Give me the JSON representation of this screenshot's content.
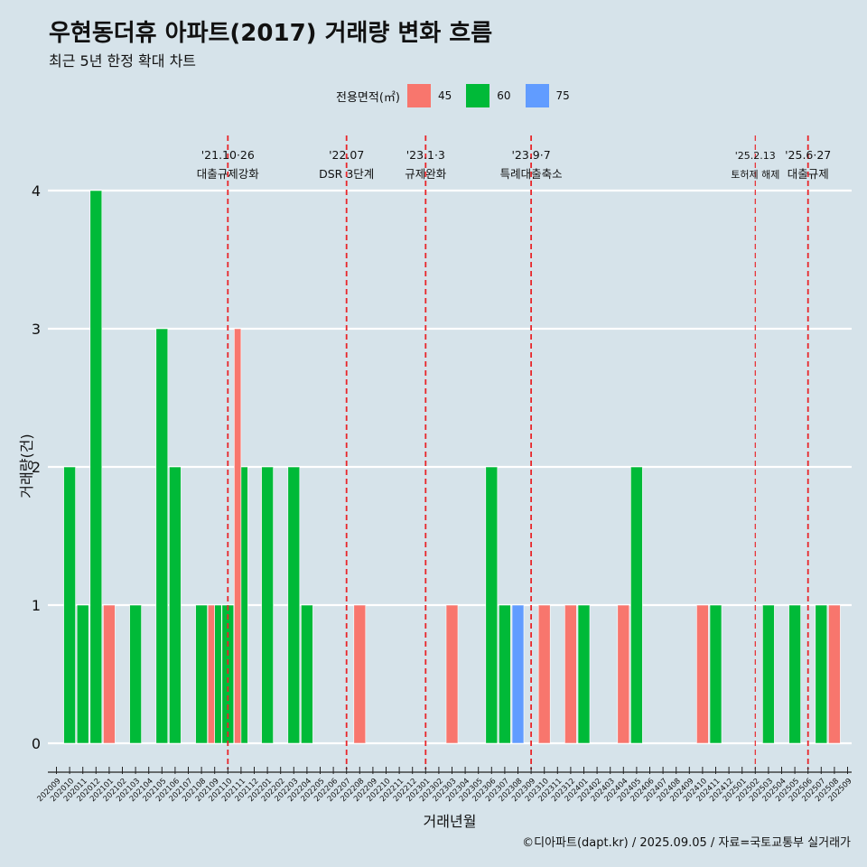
{
  "header": {
    "title": "우현동더휴 아파트(2017) 거래량 변화 흐름",
    "subtitle": "최근 5년 한정 확대 차트"
  },
  "legend": {
    "title": "전용면적(㎡)",
    "items": [
      {
        "label": "45",
        "color": "#f8766d"
      },
      {
        "label": "60",
        "color": "#00ba38"
      },
      {
        "label": "75",
        "color": "#619cff"
      }
    ]
  },
  "caption": "©디아파트(dapt.kr) / 2025.09.05 / 자료=국토교통부 실거래가",
  "chart_data": {
    "type": "bar",
    "xlabel": "거래년월",
    "ylabel": "거래량(건)",
    "ylim": [
      0,
      4
    ],
    "yticks": [
      0,
      1,
      2,
      3,
      4
    ],
    "grid": true,
    "legend_position": "top",
    "categories": [
      "202009",
      "202010",
      "202011",
      "202012",
      "202101",
      "202102",
      "202103",
      "202104",
      "202105",
      "202106",
      "202107",
      "202108",
      "202109",
      "202110",
      "202111",
      "202112",
      "202201",
      "202202",
      "202203",
      "202204",
      "202205",
      "202206",
      "202207",
      "202208",
      "202209",
      "202210",
      "202211",
      "202212",
      "202301",
      "202302",
      "202303",
      "202304",
      "202305",
      "202306",
      "202307",
      "202308",
      "202309",
      "202310",
      "202311",
      "202312",
      "202401",
      "202402",
      "202403",
      "202404",
      "202405",
      "202406",
      "202407",
      "202408",
      "202409",
      "202410",
      "202411",
      "202412",
      "202501",
      "202502",
      "202503",
      "202504",
      "202505",
      "202506",
      "202507",
      "202508",
      "202509"
    ],
    "bars": [
      {
        "x": "202010",
        "series": "60",
        "value": 2
      },
      {
        "x": "202011",
        "series": "60",
        "value": 1
      },
      {
        "x": "202012",
        "series": "60",
        "value": 4
      },
      {
        "x": "202101",
        "series": "45",
        "value": 1
      },
      {
        "x": "202103",
        "series": "60",
        "value": 1
      },
      {
        "x": "202105",
        "series": "60",
        "value": 3
      },
      {
        "x": "202106",
        "series": "60",
        "value": 2
      },
      {
        "x": "202108",
        "series": "60",
        "value": 1
      },
      {
        "x": "202109",
        "series": "45",
        "value": 1
      },
      {
        "x": "202109",
        "series": "60",
        "value": 1
      },
      {
        "x": "202110",
        "series": "60",
        "value": 1
      },
      {
        "x": "202111",
        "series": "45",
        "value": 3
      },
      {
        "x": "202111",
        "series": "60",
        "value": 2
      },
      {
        "x": "202201",
        "series": "60",
        "value": 2
      },
      {
        "x": "202203",
        "series": "60",
        "value": 2
      },
      {
        "x": "202204",
        "series": "60",
        "value": 1
      },
      {
        "x": "202208",
        "series": "45",
        "value": 1
      },
      {
        "x": "202303",
        "series": "45",
        "value": 1
      },
      {
        "x": "202306",
        "series": "60",
        "value": 2
      },
      {
        "x": "202307",
        "series": "60",
        "value": 1
      },
      {
        "x": "202308",
        "series": "75",
        "value": 1
      },
      {
        "x": "202310",
        "series": "45",
        "value": 1
      },
      {
        "x": "202312",
        "series": "45",
        "value": 1
      },
      {
        "x": "202401",
        "series": "60",
        "value": 1
      },
      {
        "x": "202404",
        "series": "45",
        "value": 1
      },
      {
        "x": "202405",
        "series": "60",
        "value": 2
      },
      {
        "x": "202410",
        "series": "45",
        "value": 1
      },
      {
        "x": "202411",
        "series": "60",
        "value": 1
      },
      {
        "x": "202503",
        "series": "60",
        "value": 1
      },
      {
        "x": "202505",
        "series": "60",
        "value": 1
      },
      {
        "x": "202507",
        "series": "60",
        "value": 1
      },
      {
        "x": "202508",
        "series": "45",
        "value": 1
      }
    ],
    "annotations": [
      {
        "x": "202110",
        "line1": "'21.10·26",
        "line2": "대출규제강화",
        "small": false
      },
      {
        "x": "202207",
        "line1": "'22.07",
        "line2": "DSR 3단계",
        "small": false
      },
      {
        "x": "202301",
        "line1": "'23.1·3",
        "line2": "규제완화",
        "small": false
      },
      {
        "x": "202309",
        "line1": "'23.9·7",
        "line2": "특례대출축소",
        "small": false
      },
      {
        "x": "202502",
        "line1": "'25.2.13",
        "line2": "토허제 해제",
        "small": true
      },
      {
        "x": "202506",
        "line1": "'25.6·27",
        "line2": "대출규제",
        "small": false
      }
    ]
  }
}
